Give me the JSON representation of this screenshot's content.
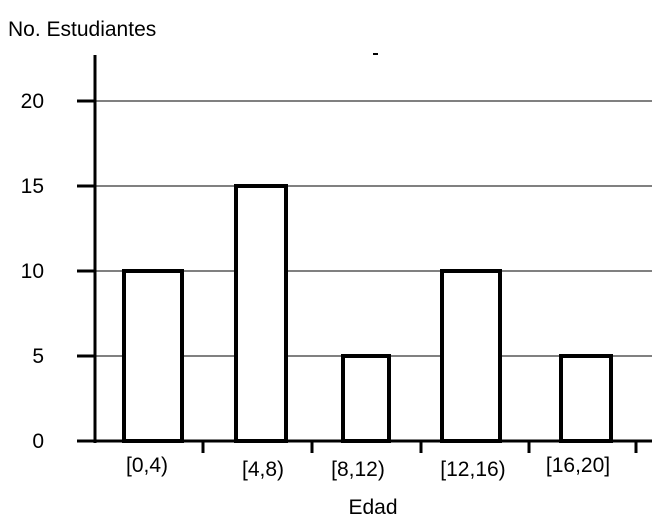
{
  "chart_data": {
    "type": "bar",
    "title": "",
    "ylabel": "No. Estudiantes",
    "xlabel": "Edad",
    "categories": [
      "[0,4)",
      "[4,8)",
      "[8,12)",
      "[12,16)",
      "[16,20]"
    ],
    "values": [
      10,
      15,
      5,
      10,
      5
    ],
    "ylim": [
      0,
      22
    ],
    "yticks": [
      "0",
      "5",
      "10",
      "15",
      "20"
    ],
    "grid": true,
    "legend": "none",
    "bar_fill": "#ffffff",
    "bar_stroke": "#000000"
  }
}
